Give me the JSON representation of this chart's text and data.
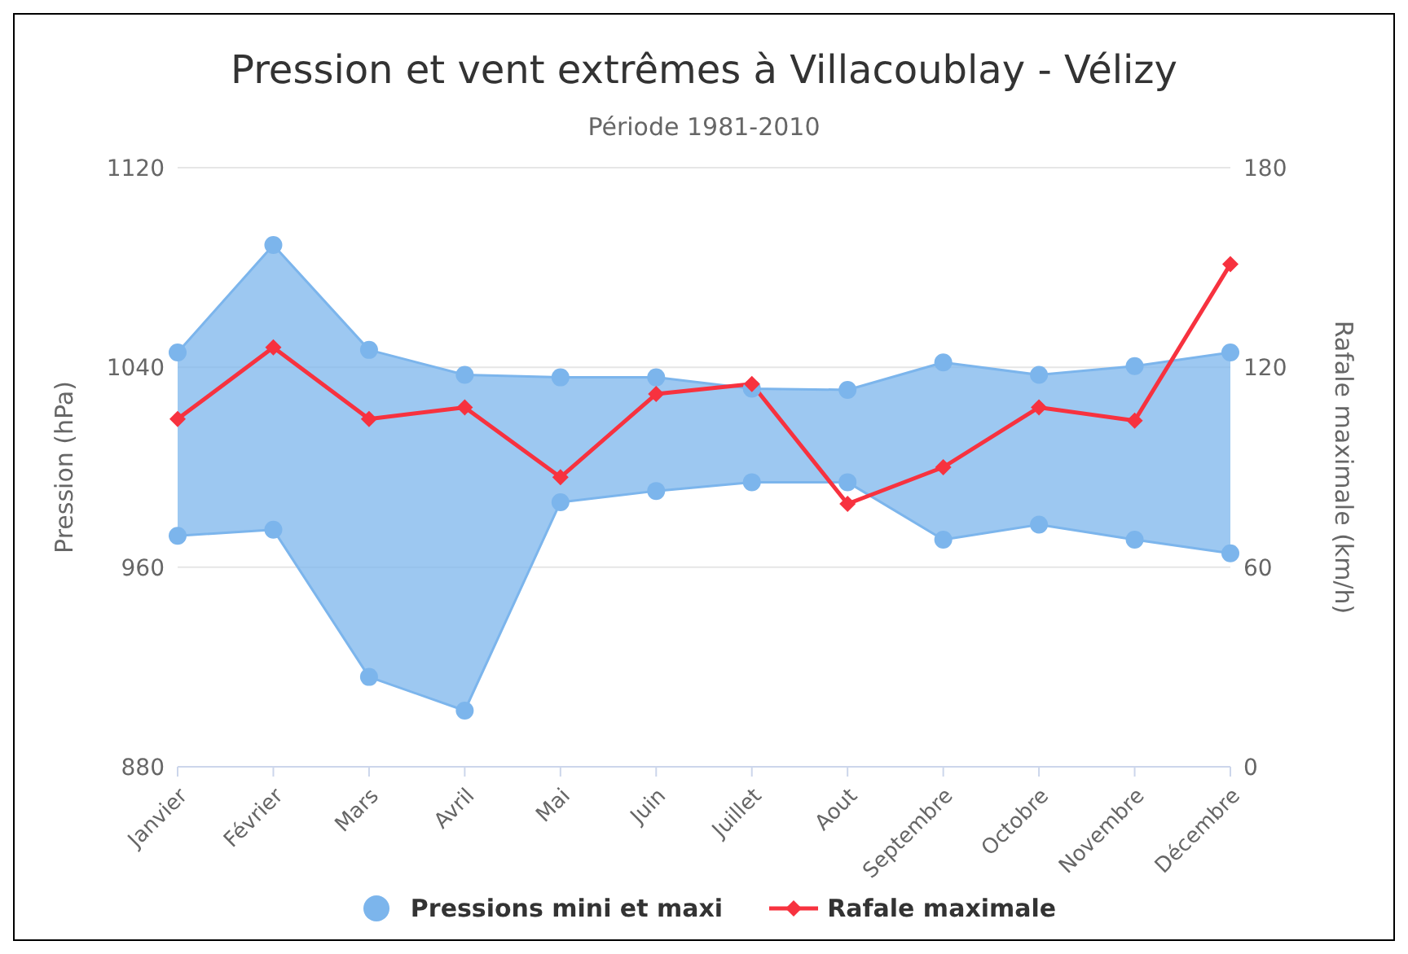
{
  "chart_data": {
    "type": "line",
    "title": "Pression et vent extrêmes à Villacoublay - Vélizy",
    "subtitle": "Période 1981-2010",
    "ylabel": "Pression (hPa)",
    "y2label": "Rafale maximale (km/h)",
    "categories": [
      "Janvier",
      "Février",
      "Mars",
      "Avril",
      "Mai",
      "Juin",
      "Juillet",
      "Aout",
      "Septembre",
      "Octobre",
      "Novembre",
      "Décembre"
    ],
    "ylim": [
      880,
      1120
    ],
    "yticks": [
      880,
      960,
      1040,
      1120
    ],
    "y2lim": [
      0,
      180
    ],
    "y2ticks": [
      0,
      60,
      120,
      180
    ],
    "grid": "y",
    "legend": "bottom",
    "series": [
      {
        "name": "Pressions mini et maxi",
        "color": "#7cb5ec",
        "marker": "circle",
        "values": [
          1046,
          1089,
          1047,
          1037,
          1036,
          1036,
          1031.5,
          1031,
          1042,
          1037,
          1040.5,
          1046
        ],
        "lower": [
          972.5,
          975,
          916,
          902.5,
          986,
          990.5,
          994,
          994,
          971,
          977,
          971,
          965.5
        ],
        "upper": [
          1046,
          1089,
          1047,
          1037,
          1036,
          1036,
          1031.5,
          1031,
          1042,
          1037,
          1040.5,
          1046
        ]
      },
      {
        "color": "#7cb5ec",
        "marker": "circle",
        "values": [
          972.5,
          975,
          916,
          902.5,
          986,
          990.5,
          994,
          994,
          971,
          977,
          971,
          965.5
        ]
      },
      {
        "name": "Rafale maximale",
        "axis": "y2",
        "color": "#f7323f",
        "marker": "diamond",
        "values": [
          104.5,
          126,
          104.5,
          108,
          87,
          112,
          115,
          79,
          90,
          108,
          104,
          151
        ]
      }
    ]
  }
}
